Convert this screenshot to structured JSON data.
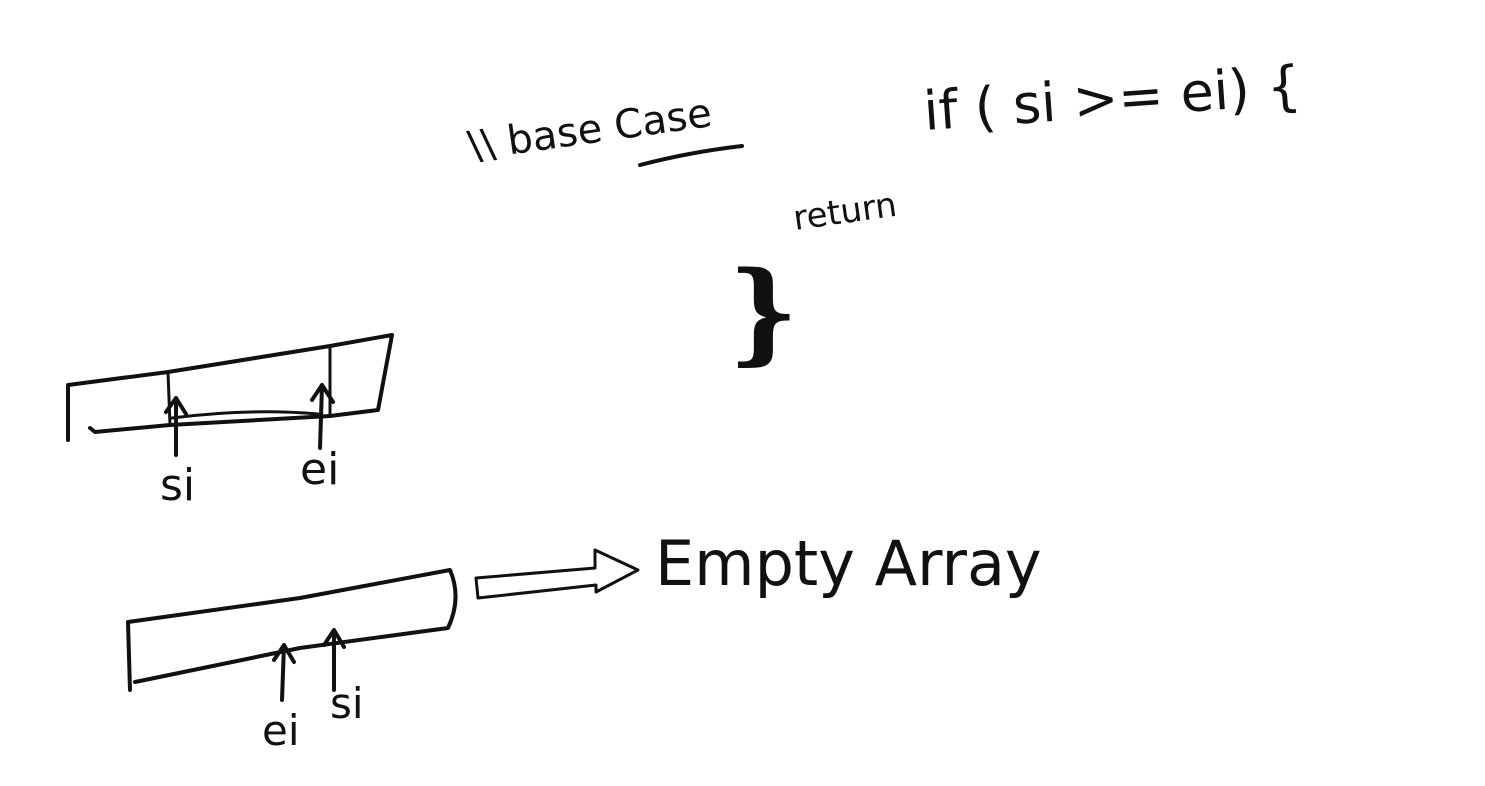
{
  "whiteboard": {
    "comment": "\\\\ base Case",
    "code_condition": "if ( si >= ei) {",
    "code_return": "return",
    "code_close_brace": "}",
    "upper_array_labels": {
      "start": "si",
      "end": "ei"
    },
    "lower_array_labels": {
      "end": "ei",
      "start": "si"
    },
    "arrow_result": "Empty Array",
    "ink_color": "#111111",
    "background_color": "#ffffff"
  }
}
